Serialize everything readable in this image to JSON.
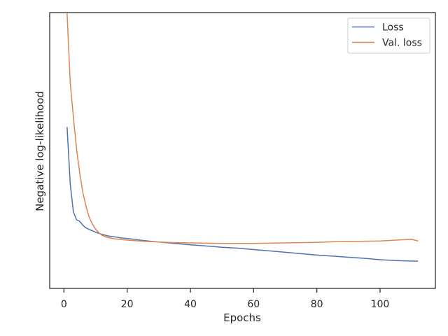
{
  "chart_data": {
    "type": "line",
    "xlabel": "Epochs",
    "ylabel": "Negative log-likelihood",
    "xlim": [
      -4.5,
      117.5
    ],
    "ylim": [
      0.0,
      1.0
    ],
    "y_tick_labels_shown": false,
    "x_ticks": [
      0,
      20,
      40,
      60,
      80,
      100
    ],
    "x_tick_labels": [
      "0",
      "20",
      "40",
      "60",
      "80",
      "100"
    ],
    "grid": false,
    "legend_position": "upper right",
    "series": [
      {
        "name": "Loss",
        "color": "#4c72b0",
        "x": [
          1,
          2,
          3,
          4,
          5,
          6,
          7,
          8,
          10,
          12,
          14,
          16,
          18,
          20,
          25,
          30,
          35,
          40,
          45,
          50,
          55,
          60,
          65,
          70,
          75,
          80,
          85,
          90,
          95,
          100,
          105,
          110,
          112
        ],
        "y": [
          0.585,
          0.378,
          0.277,
          0.249,
          0.243,
          0.229,
          0.219,
          0.214,
          0.204,
          0.196,
          0.19,
          0.187,
          0.183,
          0.181,
          0.174,
          0.168,
          0.163,
          0.158,
          0.154,
          0.149,
          0.146,
          0.141,
          0.136,
          0.131,
          0.126,
          0.121,
          0.117,
          0.113,
          0.109,
          0.104,
          0.101,
          0.099,
          0.099
        ]
      },
      {
        "name": "Val. loss",
        "color": "#dd8452",
        "x": [
          1,
          2,
          3,
          4,
          5,
          6,
          7,
          8,
          9,
          10,
          11,
          12,
          13,
          14,
          16,
          18,
          20,
          25,
          30,
          35,
          40,
          45,
          50,
          55,
          60,
          65,
          70,
          75,
          80,
          85,
          90,
          95,
          100,
          105,
          110,
          112
        ],
        "y": [
          0.997,
          0.746,
          0.62,
          0.505,
          0.418,
          0.347,
          0.297,
          0.258,
          0.233,
          0.215,
          0.202,
          0.193,
          0.188,
          0.184,
          0.18,
          0.177,
          0.175,
          0.171,
          0.168,
          0.166,
          0.165,
          0.164,
          0.163,
          0.163,
          0.163,
          0.164,
          0.165,
          0.166,
          0.167,
          0.169,
          0.17,
          0.171,
          0.172,
          0.175,
          0.178,
          0.172
        ]
      }
    ]
  }
}
